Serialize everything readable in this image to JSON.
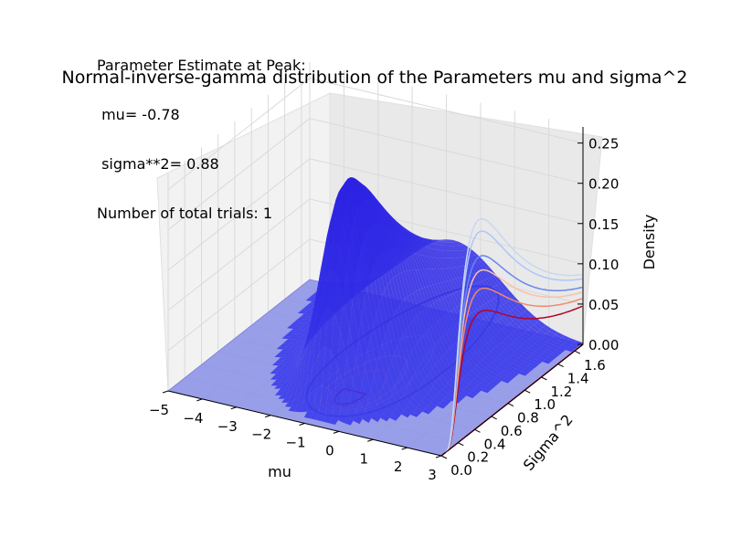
{
  "chart_data": {
    "type": "surface3d",
    "title": "Normal-inverse-gamma distribution of the Parameters mu and sigma^2",
    "xlabel": "mu",
    "ylabel": "Sigma^2",
    "zlabel": "Density",
    "xlim": [
      -5,
      3
    ],
    "ylim": [
      0.0,
      1.7
    ],
    "zlim": [
      0.0,
      0.27
    ],
    "x_ticks": [
      "−5",
      "−4",
      "−3",
      "−2",
      "−1",
      "0",
      "1",
      "2",
      "3"
    ],
    "y_ticks": [
      "0.0",
      "0.2",
      "0.4",
      "0.6",
      "0.8",
      "1.0",
      "1.2",
      "1.4",
      "1.6"
    ],
    "z_ticks": [
      "0.00",
      "0.05",
      "0.10",
      "0.15",
      "0.20",
      "0.25"
    ],
    "grid": true,
    "annotation": {
      "line1": "Parameter Estimate at Peak:",
      "line2": " mu= -0.78",
      "line3": " sigma**2= 0.88",
      "line4": "Number of total trials: 1"
    },
    "peak": {
      "mu": -0.78,
      "sigma2": 0.88
    },
    "contour_colormap": "coolwarm",
    "surface_color": "#3333ee"
  }
}
